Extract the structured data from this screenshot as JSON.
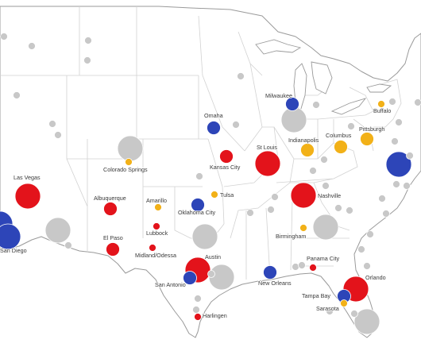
{
  "colors": {
    "red": "#e3131b",
    "blue": "#2d45b8",
    "orange": "#f2b118",
    "gray": "#c8c8c8"
  },
  "cities": [
    {
      "label": "Las Vegas",
      "color": "red",
      "size": "large"
    },
    {
      "label": "San Diego",
      "color": "blue",
      "size": "large"
    },
    {
      "label": "Colorado Springs",
      "color": "orange",
      "size": "small"
    },
    {
      "label": "Albuquerque",
      "color": "red",
      "size": "medium"
    },
    {
      "label": "Amarillo",
      "color": "orange",
      "size": "small"
    },
    {
      "label": "Lubbock",
      "color": "red",
      "size": "small"
    },
    {
      "label": "El Paso",
      "color": "red",
      "size": "medium"
    },
    {
      "label": "Midland/Odessa",
      "color": "red",
      "size": "small"
    },
    {
      "label": "Tulsa",
      "color": "orange",
      "size": "small"
    },
    {
      "label": "Oklahoma City",
      "color": "blue",
      "size": "medium"
    },
    {
      "label": "Omaha",
      "color": "blue",
      "size": "medium"
    },
    {
      "label": "Kansas City",
      "color": "red",
      "size": "medium"
    },
    {
      "label": "St Louis",
      "color": "red",
      "size": "large"
    },
    {
      "label": "Milwaukee",
      "color": "blue",
      "size": "medium"
    },
    {
      "label": "Indianapolis",
      "color": "orange",
      "size": "medium"
    },
    {
      "label": "Columbus",
      "color": "orange",
      "size": "medium"
    },
    {
      "label": "Pittsburgh",
      "color": "orange",
      "size": "medium"
    },
    {
      "label": "Buffalo",
      "color": "orange",
      "size": "small"
    },
    {
      "label": "Nashville",
      "color": "red",
      "size": "large"
    },
    {
      "label": "Birmingham",
      "color": "orange",
      "size": "small"
    },
    {
      "label": "Austin",
      "color": "red",
      "size": "large"
    },
    {
      "label": "San Antonio",
      "color": "blue",
      "size": "medium"
    },
    {
      "label": "Harlingen",
      "color": "red",
      "size": "small"
    },
    {
      "label": "New Orleans",
      "color": "blue",
      "size": "medium"
    },
    {
      "label": "Panama City",
      "color": "red",
      "size": "small"
    },
    {
      "label": "Orlando",
      "color": "red",
      "size": "large"
    },
    {
      "label": "Tampa Bay",
      "color": "blue",
      "size": "medium"
    },
    {
      "label": "Sarasota",
      "color": "orange",
      "size": "small"
    }
  ],
  "unlabeled_markers": [
    {
      "color": "gray",
      "size": "large",
      "count": 7
    },
    {
      "color": "gray",
      "size": "small",
      "count": 40
    },
    {
      "color": "blue",
      "size": "large",
      "count": 2
    }
  ]
}
